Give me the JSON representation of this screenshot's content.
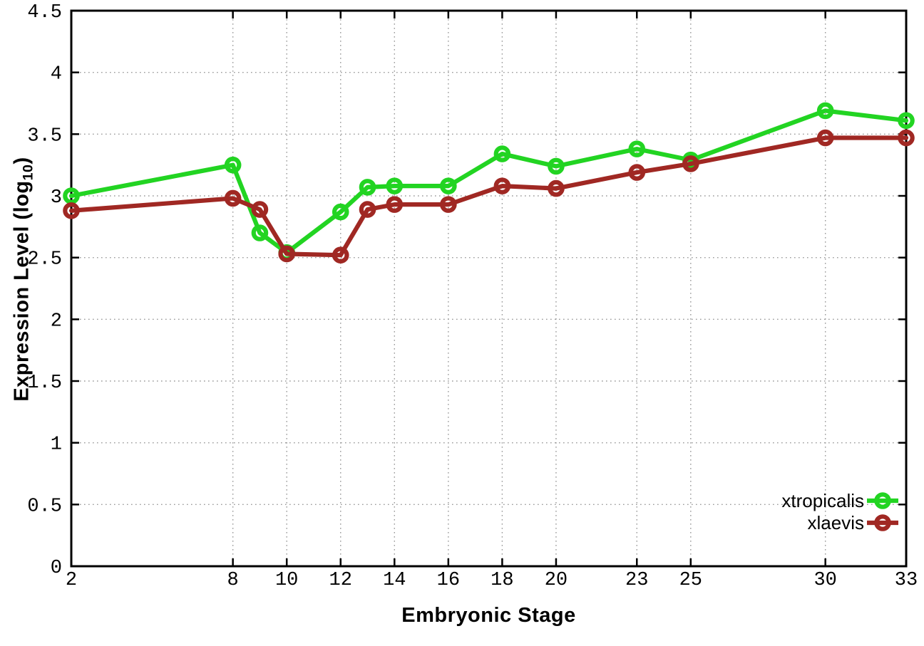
{
  "figure": {
    "xlabel": "Embryonic Stage",
    "ylabel_prefix": "Expression Level (log",
    "ylabel_sub": "10",
    "ylabel_suffix": ")"
  },
  "chart_data": {
    "type": "line",
    "title": "",
    "xlabel": "Embryonic Stage",
    "ylabel": "Expression Level (log10)",
    "x": [
      2,
      8,
      9,
      10,
      12,
      13,
      14,
      16,
      18,
      20,
      23,
      25,
      30,
      33
    ],
    "series": [
      {
        "name": "xtropicalis",
        "color": "#22d422",
        "values": [
          3.0,
          3.25,
          2.7,
          2.54,
          2.87,
          3.07,
          3.08,
          3.08,
          3.34,
          3.24,
          3.38,
          3.29,
          3.69,
          3.61
        ]
      },
      {
        "name": "xlaevis",
        "color": "#a02823",
        "values": [
          2.88,
          2.98,
          2.89,
          2.53,
          2.52,
          2.89,
          2.93,
          2.93,
          3.08,
          3.06,
          3.19,
          3.26,
          3.47,
          3.47
        ]
      }
    ],
    "xticks": [
      2,
      8,
      10,
      12,
      14,
      16,
      18,
      20,
      23,
      25,
      30,
      33
    ],
    "yticks": [
      0,
      0.5,
      1,
      1.5,
      2,
      2.5,
      3,
      3.5,
      4,
      4.5
    ],
    "xlim": [
      2,
      33
    ],
    "ylim": [
      0,
      4.5
    ],
    "grid": true,
    "grid_color": "#9a9a9a",
    "axis_color": "#000000",
    "marker": "open-circle",
    "legend_position": "bottom-right"
  }
}
